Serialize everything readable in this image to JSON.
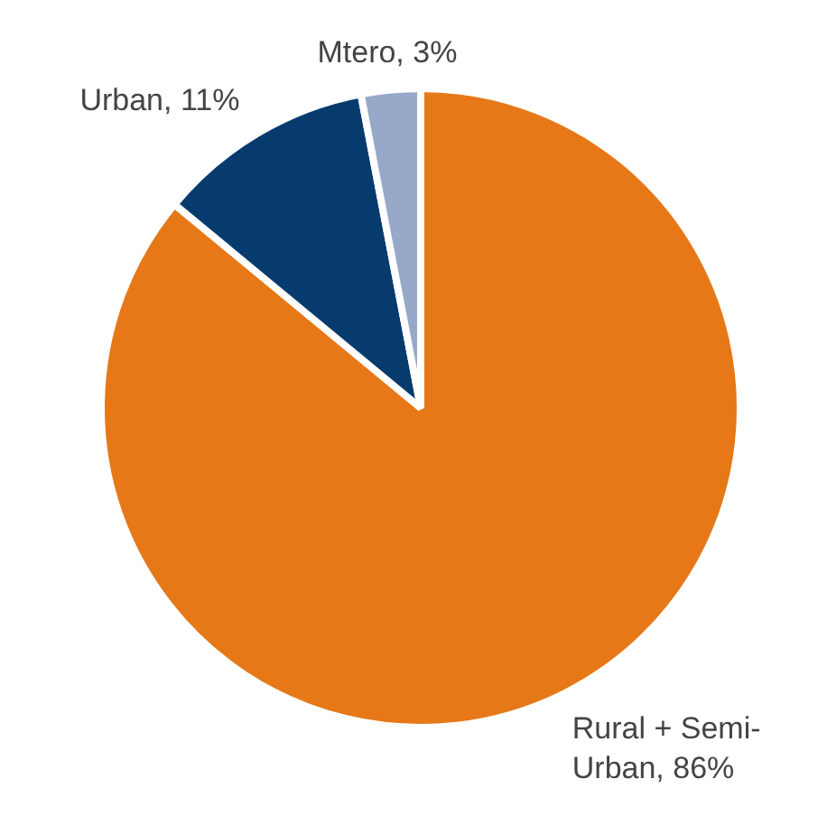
{
  "chart_data": {
    "type": "pie",
    "categories": [
      "Rural + Semi-Urban",
      "Urban",
      "Mtero"
    ],
    "values": [
      86,
      11,
      3
    ],
    "value_labels": [
      "86%",
      "11%",
      "3%"
    ],
    "colors": [
      "#e67817",
      "#073b6e",
      "#98a8c8"
    ],
    "legend": false
  }
}
